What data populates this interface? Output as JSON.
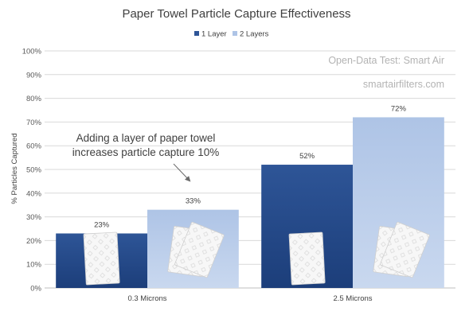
{
  "chart_data": {
    "type": "bar",
    "title": "Paper Towel Particle Capture Effectiveness",
    "categories": [
      "0.3 Microns",
      "2.5 Microns"
    ],
    "series": [
      {
        "name": "1 Layer",
        "values": [
          23,
          52
        ],
        "data_labels": [
          "23%",
          "52%"
        ]
      },
      {
        "name": "2 Layers",
        "values": [
          33,
          72
        ],
        "data_labels": [
          "33%",
          "72%"
        ]
      }
    ],
    "ylabel": "% Particles Captured",
    "xlabel": "",
    "ylim": [
      0,
      100
    ],
    "y_ticks": [
      "0%",
      "10%",
      "20%",
      "30%",
      "40%",
      "50%",
      "60%",
      "70%",
      "80%",
      "90%",
      "100%"
    ],
    "grid": true,
    "legend_position": "top-center",
    "annotation": {
      "lines": [
        "Adding a layer of paper towel",
        "increases particle capture 10%"
      ]
    },
    "watermarks": [
      "Open-Data Test: Smart Air",
      "smartairfilters.com"
    ],
    "colors": {
      "series_1_top": "#2e5597",
      "series_1_bottom": "#1c3e7a",
      "series_2_top": "#aec4e6",
      "series_2_bottom": "#c9d8ef",
      "grid": "#d9d9d9",
      "text": "#404040"
    },
    "decorations": [
      "paper-towel-single",
      "paper-towel-double",
      "paper-towel-single",
      "paper-towel-double"
    ]
  }
}
